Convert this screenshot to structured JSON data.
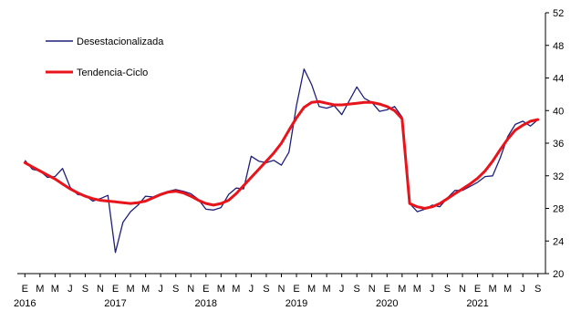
{
  "chart_data": {
    "type": "line",
    "title": "",
    "xlabel": "",
    "ylabel": "",
    "ylim": [
      20,
      52
    ],
    "yticks": [
      20,
      24,
      28,
      32,
      36,
      40,
      44,
      48,
      52
    ],
    "y_axis_side": "right",
    "grid": false,
    "legend_position": "top-left",
    "month_labels": [
      "E",
      "M",
      "M",
      "J",
      "S",
      "N",
      "E",
      "M",
      "M",
      "J",
      "S",
      "N",
      "E",
      "M",
      "M",
      "J",
      "S",
      "N",
      "E",
      "M",
      "M",
      "J",
      "S",
      "N",
      "E",
      "M",
      "M",
      "J",
      "S",
      "N",
      "E",
      "M",
      "M",
      "J",
      "S"
    ],
    "year_labels": [
      {
        "label": "2016",
        "tick_index": 0
      },
      {
        "label": "2017",
        "tick_index": 6
      },
      {
        "label": "2018",
        "tick_index": 12
      },
      {
        "label": "2019",
        "tick_index": 18
      },
      {
        "label": "2020",
        "tick_index": 24
      },
      {
        "label": "2021",
        "tick_index": 30
      }
    ],
    "x_start": "2016-01",
    "x_frequency": "monthly",
    "series": [
      {
        "name": "Desestacionalizada",
        "color": "#1f1f7a",
        "values": [
          33.9,
          32.8,
          32.6,
          31.8,
          31.9,
          32.9,
          30.6,
          29.7,
          29.6,
          28.9,
          29.2,
          29.6,
          22.6,
          26.3,
          27.6,
          28.4,
          29.5,
          29.4,
          29.8,
          30.1,
          30.3,
          30.1,
          29.8,
          29.1,
          27.9,
          27.8,
          28.1,
          29.7,
          30.5,
          30.4,
          34.4,
          33.8,
          33.6,
          33.9,
          33.3,
          34.9,
          40.6,
          45.1,
          43.2,
          40.5,
          40.3,
          40.6,
          39.5,
          41.2,
          42.9,
          41.5,
          41.0,
          39.9,
          40.1,
          40.5,
          39.2,
          28.6,
          27.6,
          27.9,
          28.4,
          28.2,
          29.3,
          30.2,
          30.2,
          30.7,
          31.2,
          31.9,
          32.0,
          34.2,
          36.8,
          38.3,
          38.7,
          38.1,
          38.9
        ]
      },
      {
        "name": "Tendencia-Ciclo",
        "color": "#e8141c",
        "values": [
          33.6,
          33.1,
          32.6,
          32.1,
          31.6,
          31.0,
          30.4,
          29.9,
          29.5,
          29.2,
          29.0,
          28.9,
          28.8,
          28.7,
          28.6,
          28.7,
          28.9,
          29.3,
          29.7,
          30.0,
          30.1,
          29.9,
          29.5,
          29.0,
          28.6,
          28.4,
          28.6,
          29.0,
          29.8,
          30.8,
          31.8,
          32.8,
          33.8,
          34.8,
          36.0,
          37.6,
          39.1,
          40.4,
          41.0,
          41.1,
          40.9,
          40.7,
          40.7,
          40.8,
          40.9,
          41.0,
          41.0,
          40.8,
          40.5,
          40.0,
          39.0,
          28.6,
          28.2,
          28.0,
          28.2,
          28.6,
          29.2,
          29.8,
          30.4,
          31.0,
          31.7,
          32.6,
          33.8,
          35.2,
          36.5,
          37.6,
          38.2,
          38.7,
          38.9
        ]
      }
    ]
  }
}
